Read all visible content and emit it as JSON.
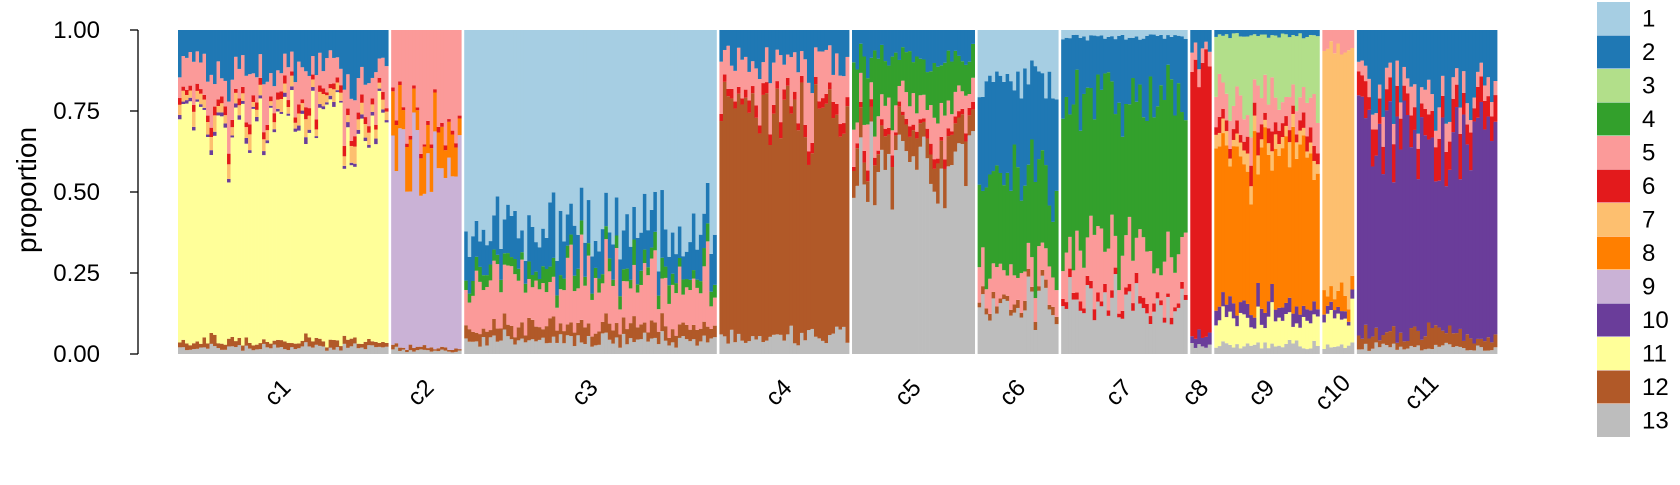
{
  "chart_data": {
    "type": "bar",
    "subtype": "stacked-proportion (admixture/structure plot)",
    "ylabel": "proportion",
    "ylim": [
      0,
      1
    ],
    "y_ticks": [
      "0.00",
      "0.25",
      "0.50",
      "0.75",
      "1.00"
    ],
    "y_tick_values": [
      0,
      0.25,
      0.5,
      0.75,
      1
    ],
    "legend_position": "right",
    "grid": false,
    "components": [
      {
        "name": "1",
        "color": "#a6cee3"
      },
      {
        "name": "2",
        "color": "#1f78b4"
      },
      {
        "name": "3",
        "color": "#b2df8a"
      },
      {
        "name": "4",
        "color": "#33a02c"
      },
      {
        "name": "5",
        "color": "#fb9a99"
      },
      {
        "name": "6",
        "color": "#e31a1c"
      },
      {
        "name": "7",
        "color": "#fdbf6f"
      },
      {
        "name": "8",
        "color": "#ff7f00"
      },
      {
        "name": "9",
        "color": "#cab2d6"
      },
      {
        "name": "10",
        "color": "#6a3d9a"
      },
      {
        "name": "11",
        "color": "#ffff99"
      },
      {
        "name": "12",
        "color": "#b15928"
      },
      {
        "name": "13",
        "color": "#bdbdbd"
      }
    ],
    "note": "Each cluster group contains many individual stacked bars; mean component proportions per group are listed (estimated). Bars within each group are drawn with varying profiles around these means.",
    "groups": [
      {
        "label": "c1",
        "n": 60,
        "mean_proportions": {
          "13": 0.02,
          "12": 0.02,
          "11": 0.68,
          "10": 0.01,
          "6": 0.02,
          "7": 0.03,
          "5": 0.1,
          "2": 0.12
        }
      },
      {
        "label": "c2",
        "n": 20,
        "mean_proportions": {
          "13": 0.01,
          "12": 0.01,
          "9": 0.6,
          "8": 0.1,
          "5": 0.27,
          "6": 0.01
        }
      },
      {
        "label": "c3",
        "n": 72,
        "mean_proportions": {
          "13": 0.04,
          "12": 0.04,
          "5": 0.14,
          "4": 0.04,
          "2": 0.12,
          "1": 0.62
        }
      },
      {
        "label": "c4",
        "n": 37,
        "mean_proportions": {
          "13": 0.05,
          "12": 0.7,
          "6": 0.03,
          "5": 0.12,
          "2": 0.1
        }
      },
      {
        "label": "c5",
        "n": 35,
        "mean_proportions": {
          "13": 0.6,
          "12": 0.08,
          "5": 0.08,
          "6": 0.02,
          "4": 0.14,
          "2": 0.08
        }
      },
      {
        "label": "c6",
        "n": 23,
        "mean_proportions": {
          "13": 0.15,
          "12": 0.02,
          "5": 0.1,
          "4": 0.28,
          "2": 0.3,
          "1": 0.15
        }
      },
      {
        "label": "c7",
        "n": 36,
        "mean_proportions": {
          "13": 0.15,
          "5": 0.15,
          "6": 0.02,
          "4": 0.48,
          "2": 0.18,
          "1": 0.02
        }
      },
      {
        "label": "c8",
        "n": 6,
        "mean_proportions": {
          "13": 0.03,
          "10": 0.03,
          "6": 0.82,
          "5": 0.05,
          "2": 0.07
        }
      },
      {
        "label": "c9",
        "n": 30,
        "mean_proportions": {
          "13": 0.03,
          "11": 0.08,
          "10": 0.04,
          "8": 0.45,
          "7": 0.04,
          "6": 0.04,
          "5": 0.1,
          "3": 0.2,
          "2": 0.02
        }
      },
      {
        "label": "c10",
        "n": 9,
        "mean_proportions": {
          "13": 0.02,
          "10": 0.02,
          "11": 0.1,
          "8": 0.05,
          "7": 0.75,
          "5": 0.06
        }
      },
      {
        "label": "c11",
        "n": 40,
        "mean_proportions": {
          "13": 0.02,
          "12": 0.04,
          "10": 0.62,
          "6": 0.08,
          "5": 0.06,
          "2": 0.18
        }
      }
    ]
  }
}
